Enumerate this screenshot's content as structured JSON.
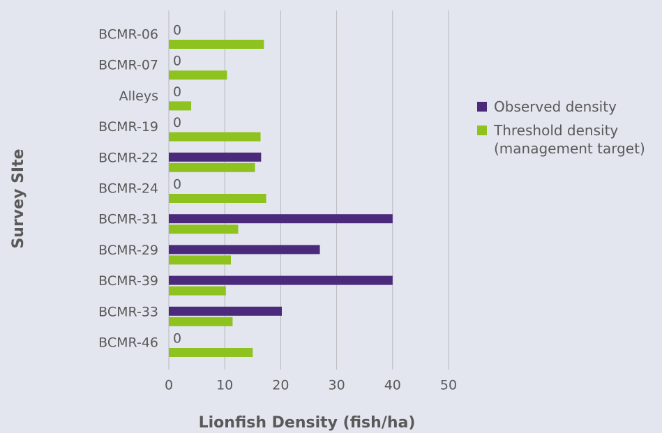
{
  "chart_data": {
    "type": "barh",
    "xlabel": "Lionfish Density (fish/ha)",
    "ylabel": "Survey SIte",
    "categories": [
      "BCMR-06",
      "BCMR-07",
      "Alleys",
      "BCMR-19",
      "BCMR-22",
      "BCMR-24",
      "BCMR-31",
      "BCMR-29",
      "BCMR-39",
      "BCMR-33",
      "BCMR-46"
    ],
    "series": [
      {
        "name": "Observed density",
        "color": "#4b2a7c",
        "values": [
          0,
          0,
          0,
          0,
          16.5,
          0,
          40,
          27,
          40,
          20.2,
          0
        ]
      },
      {
        "name": "Threshold density (management target)",
        "color": "#8dc21f",
        "values": [
          17,
          10.4,
          4,
          16.4,
          15.4,
          17.4,
          12.4,
          11.1,
          10.2,
          11.4,
          15
        ]
      }
    ],
    "xlim": [
      0,
      50
    ],
    "xticks": [
      0,
      10,
      20,
      30,
      40,
      50
    ],
    "grid": true,
    "legend": "right"
  }
}
